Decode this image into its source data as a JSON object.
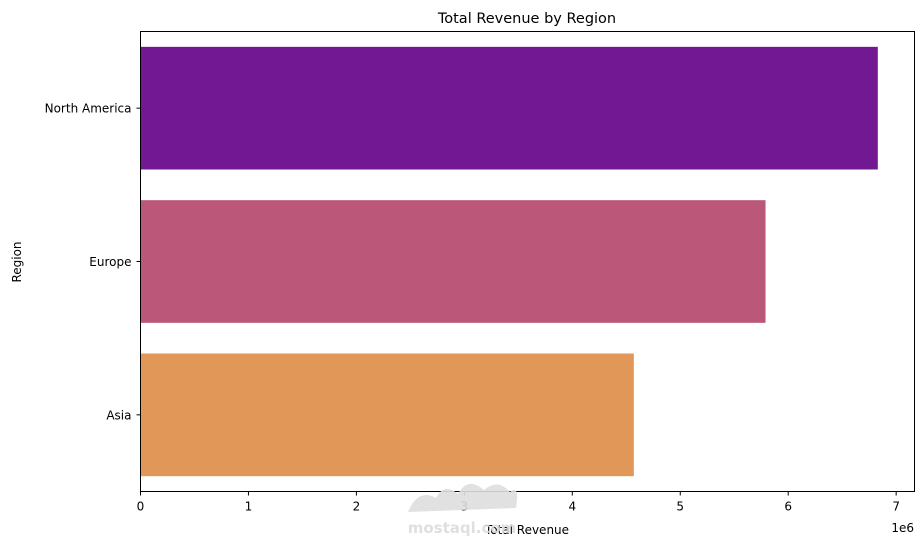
{
  "chart_data": {
    "type": "bar",
    "orientation": "horizontal",
    "title": "Total Revenue by Region",
    "xlabel": "Total Revenue",
    "ylabel": "Region",
    "x_offset_label": "1e6",
    "xlim": [
      0,
      7.17
    ],
    "x_ticks": [
      0,
      1,
      2,
      3,
      4,
      5,
      6,
      7
    ],
    "categories": [
      "North America",
      "Europe",
      "Asia"
    ],
    "values": [
      6.83,
      5.79,
      4.57
    ],
    "colors": [
      "#721893",
      "#bb5879",
      "#e09758"
    ],
    "grid": false,
    "legend": "none"
  },
  "watermark": {
    "text": "mostaql.com"
  }
}
